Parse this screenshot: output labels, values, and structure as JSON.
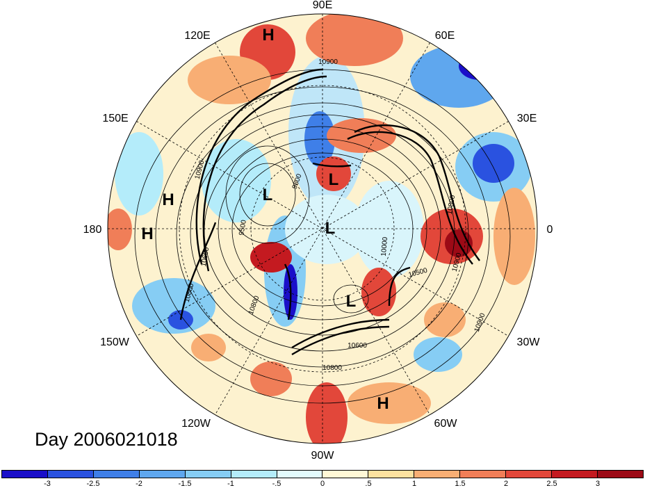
{
  "title_text": "Day 2006021018",
  "longitude_labels": [
    "90E",
    "60E",
    "30E",
    "0",
    "30W",
    "60W",
    "90W",
    "120W",
    "150W",
    "180",
    "150E",
    "120E"
  ],
  "pressure_centers": [
    "H",
    "H",
    "H",
    "L",
    "L",
    "L",
    "L",
    "H"
  ],
  "contour_labels": [
    "10900",
    "9600",
    "9500",
    "10800",
    "10900",
    "10500",
    "10600",
    "10800",
    "10800",
    "10000",
    "10900",
    "10800",
    "10900",
    "10600"
  ],
  "colorbar": {
    "ticks": [
      "-3",
      "-2.5",
      "-2",
      "-1.5",
      "-1",
      "-.5",
      "0",
      ".5",
      "1",
      "1.5",
      "2",
      "2.5",
      "3"
    ],
    "colors": [
      "#1a0fc9",
      "#2a52e0",
      "#3f7fe8",
      "#5fa7ee",
      "#86cdf4",
      "#b4ecfa",
      "#e3fbfd",
      "#fff8d6",
      "#fde2a0",
      "#f8ae74",
      "#f07e58",
      "#e2473a",
      "#c41a20",
      "#9c0a16"
    ]
  }
}
